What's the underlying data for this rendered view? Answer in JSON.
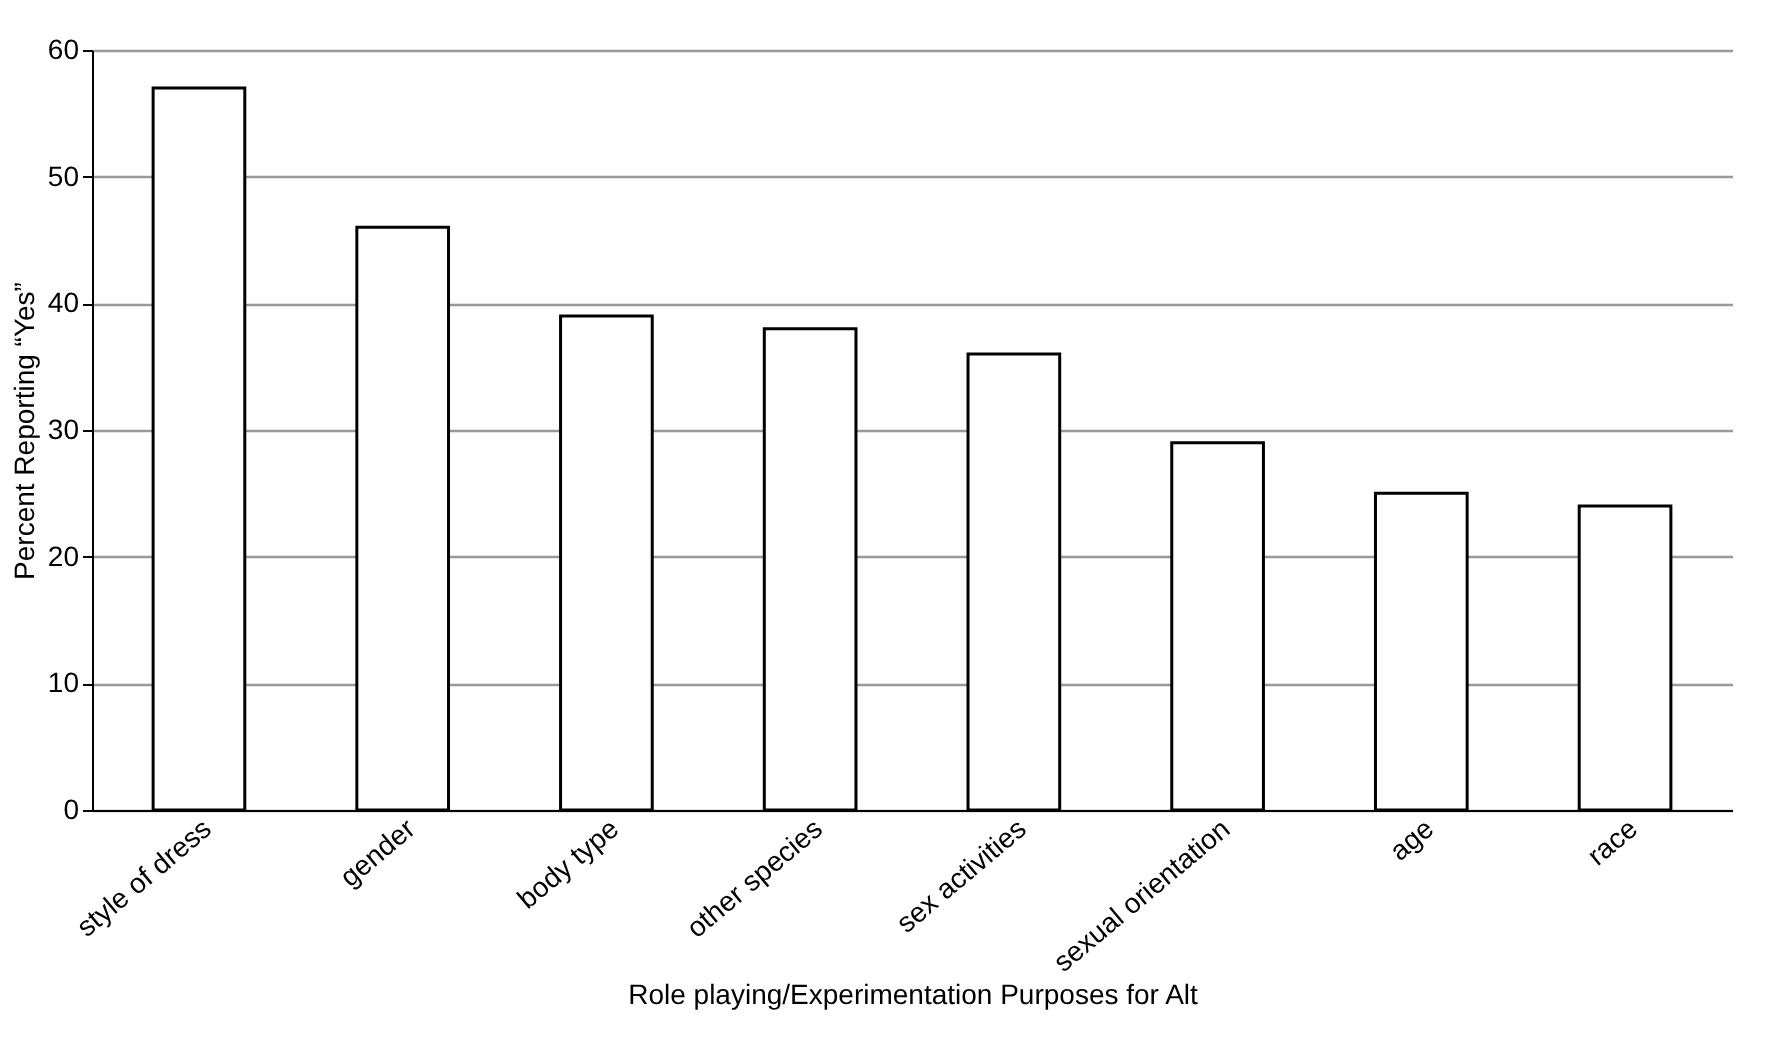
{
  "chart_data": {
    "type": "bar",
    "xlabel": "Role playing/Experimentation Purposes for Alt",
    "ylabel": "Percent Reporting “Yes”",
    "categories": [
      "style of dress",
      "gender",
      "body type",
      "other species",
      "sex activities",
      "sexual orientation",
      "age",
      "race"
    ],
    "values": [
      57,
      46,
      39,
      38,
      36,
      29,
      25,
      24
    ],
    "color": "#ffffff",
    "ylim": [
      0,
      60
    ],
    "yticks": [
      0,
      10,
      20,
      30,
      40,
      50,
      60
    ],
    "grid": "y"
  }
}
